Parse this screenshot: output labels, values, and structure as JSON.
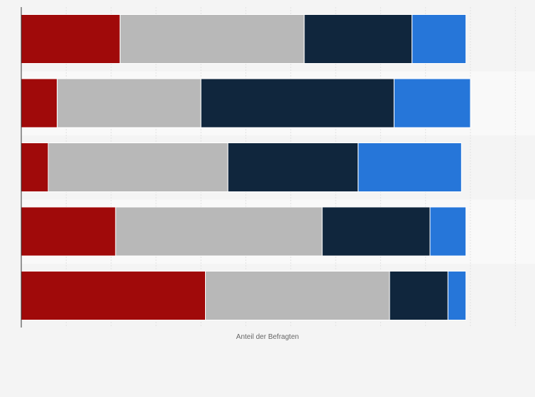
{
  "chart_data": {
    "type": "bar",
    "orientation": "horizontal",
    "stacked": true,
    "title": "",
    "xlabel": "Anteil der Befragten",
    "ylabel": "",
    "categories": [
      "",
      "",
      "",
      "",
      ""
    ],
    "series": [
      {
        "values": [
          22,
          8,
          6,
          21,
          41
        ],
        "color": "#a00a0a"
      },
      {
        "values": [
          41,
          32,
          40,
          46,
          41
        ],
        "color": "#b8b8b8"
      },
      {
        "values": [
          24,
          43,
          29,
          24,
          13
        ],
        "color": "#10263d"
      },
      {
        "values": [
          12,
          17,
          23,
          8,
          4
        ],
        "color": "#2676d9"
      }
    ],
    "xlim": [
      0,
      110
    ],
    "grid": true,
    "legend": "none"
  }
}
